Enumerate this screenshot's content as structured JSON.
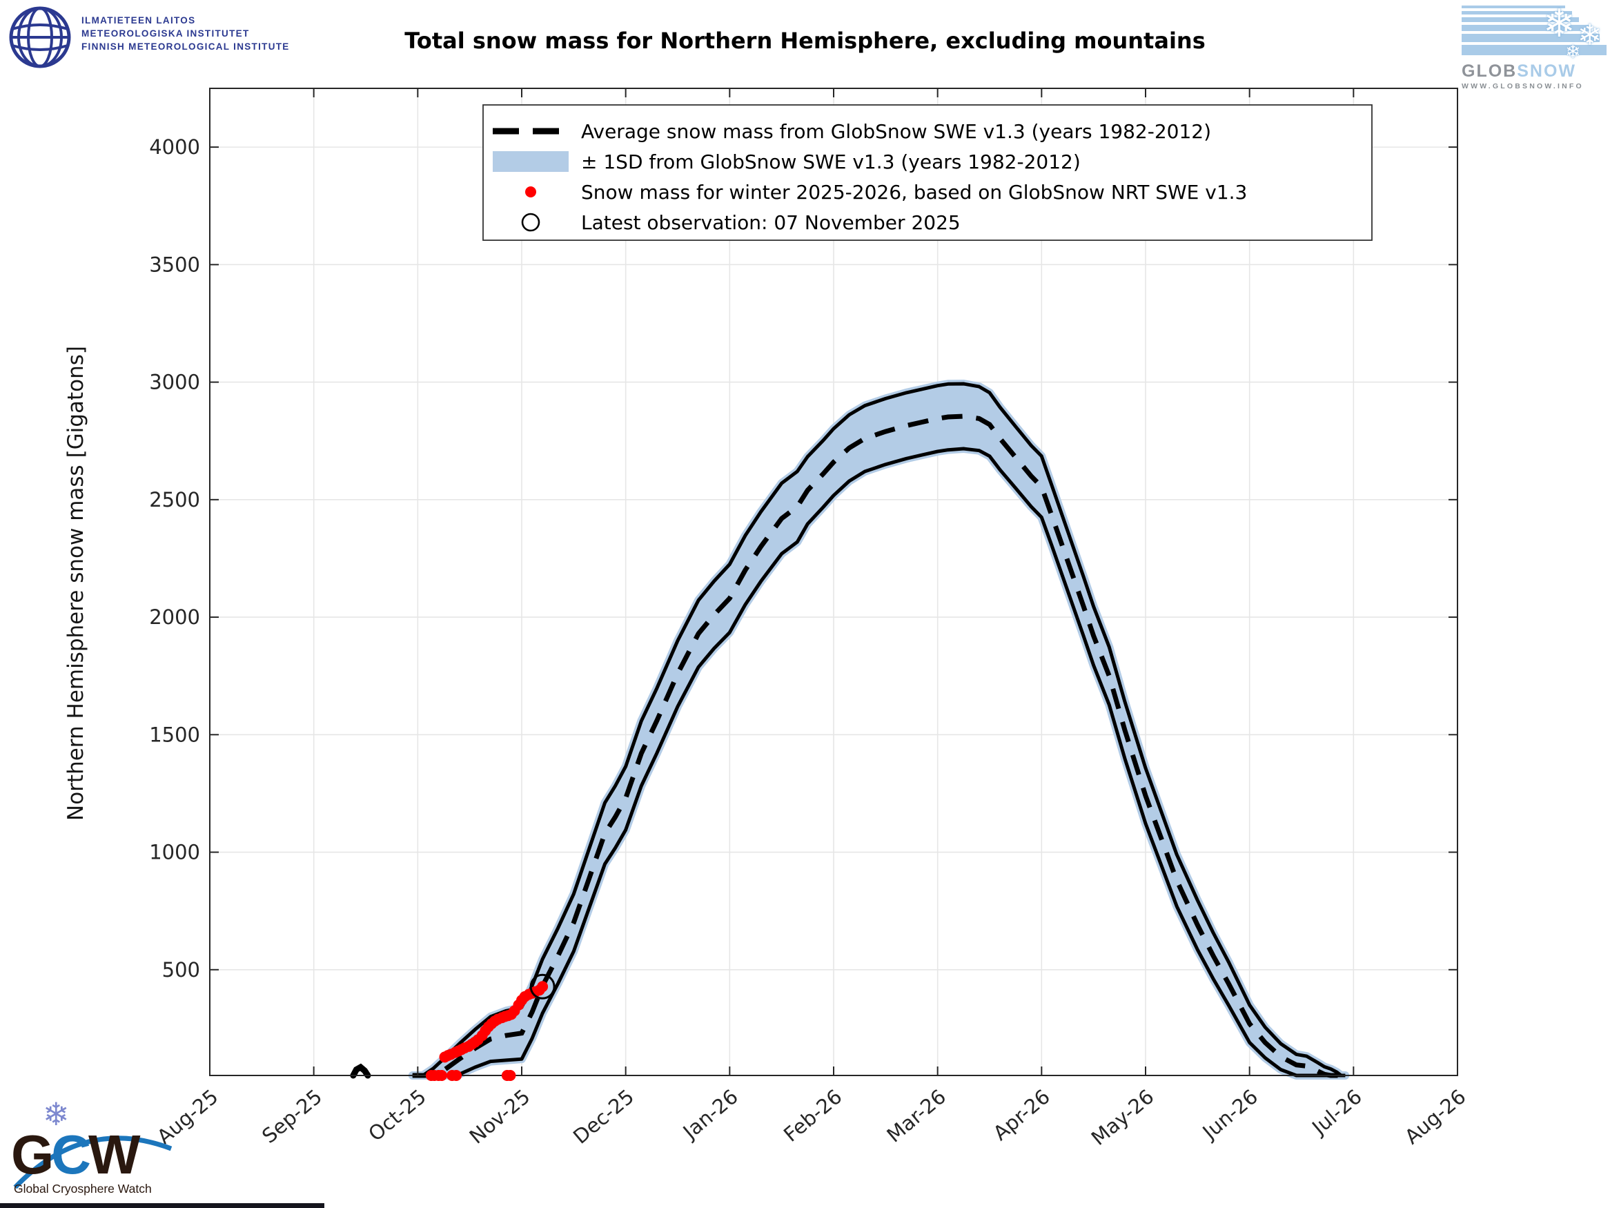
{
  "header": {
    "fmi_logo": {
      "lines": [
        "ILMATIETEEN LAITOS",
        "METEOROLOGISKA INSTITUTET",
        "FINNISH METEOROLOGICAL INSTITUTE"
      ]
    },
    "globsnow_logo": {
      "brand_gray": "GLOB",
      "brand_blue": "SNOW",
      "url": "WWW.GLOBSNOW.INFO"
    }
  },
  "footer": {
    "gcw_logo": {
      "letters": [
        "G",
        "C",
        "W"
      ],
      "caption": "Global Cryosphere Watch"
    }
  },
  "colors": {
    "band": "#B3CCE6",
    "line": "#000000",
    "nrt_red": "#FF0000",
    "grid": "#E6E6E6",
    "axis": "#262626",
    "fmi_blue": "#2B3990",
    "globsnow_blue": "#A9CBE8",
    "globsnow_gray": "#8F9399",
    "gcw_dark": "#2A180F",
    "gcw_blue": "#1C76BC"
  },
  "chart_data": {
    "type": "line",
    "title": "Total snow mass for Northern Hemisphere, excluding mountains",
    "ylabel": "Northern Hemisphere snow mass [Gigatons]",
    "xlabel": "",
    "ylim": [
      50,
      4250
    ],
    "yticks": [
      500,
      1000,
      1500,
      2000,
      2500,
      3000,
      3500,
      4000
    ],
    "xtick_labels": [
      "Aug-25",
      "Sep-25",
      "Oct-25",
      "Nov-25",
      "Dec-25",
      "Jan-26",
      "Feb-26",
      "Mar-26",
      "Apr-26",
      "May-26",
      "Jun-26",
      "Jul-26",
      "Aug-26"
    ],
    "x_unit_note": "x values below are months after 1 Aug 2025 (0 = Aug-25 tick, 12 = Aug-26 tick)",
    "grid": true,
    "legend_position": "top-left-inside",
    "legend": [
      {
        "symbol": "dashed-line",
        "label": "Average snow mass from GlobSnow SWE v1.3 (years 1982-2012)"
      },
      {
        "symbol": "band-swatch",
        "label": "± 1SD from GlobSnow SWE v1.3 (years 1982-2012)"
      },
      {
        "symbol": "red-dot",
        "label": "Snow mass for winter 2025-2026, based on GlobSnow NRT SWE v1.3"
      },
      {
        "symbol": "open-circle",
        "label": "Latest observation: 07 November 2025"
      }
    ],
    "series": [
      {
        "name": "climatology_mean_with_sd",
        "style": "black dashed mean, blue ±1SD band with solid black edges",
        "points_m_mean_sd": [
          [
            1.95,
            5,
            5
          ],
          [
            2.05,
            20,
            18
          ],
          [
            2.15,
            45,
            35
          ],
          [
            2.26,
            75,
            50
          ],
          [
            2.4,
            120,
            65
          ],
          [
            2.55,
            165,
            80
          ],
          [
            2.7,
            205,
            95
          ],
          [
            2.85,
            220,
            105
          ],
          [
            3.0,
            230,
            110
          ],
          [
            3.1,
            320,
            112
          ],
          [
            3.2,
            430,
            115
          ],
          [
            3.35,
            560,
            118
          ],
          [
            3.5,
            700,
            122
          ],
          [
            3.65,
            890,
            126
          ],
          [
            3.8,
            1080,
            130
          ],
          [
            3.9,
            1150,
            132
          ],
          [
            4.0,
            1230,
            135
          ],
          [
            4.15,
            1420,
            138
          ],
          [
            4.3,
            1560,
            138
          ],
          [
            4.5,
            1760,
            140
          ],
          [
            4.7,
            1930,
            142
          ],
          [
            4.85,
            2010,
            143
          ],
          [
            5.0,
            2080,
            145
          ],
          [
            5.15,
            2200,
            147
          ],
          [
            5.3,
            2300,
            148
          ],
          [
            5.5,
            2420,
            150
          ],
          [
            5.65,
            2470,
            150
          ],
          [
            5.75,
            2540,
            143
          ],
          [
            5.9,
            2610,
            142
          ],
          [
            6.0,
            2660,
            142
          ],
          [
            6.15,
            2720,
            141
          ],
          [
            6.3,
            2760,
            140
          ],
          [
            6.5,
            2790,
            140
          ],
          [
            6.7,
            2815,
            140
          ],
          [
            6.85,
            2830,
            140
          ],
          [
            7.0,
            2845,
            140
          ],
          [
            7.1,
            2852,
            140
          ],
          [
            7.25,
            2855,
            138
          ],
          [
            7.4,
            2845,
            136
          ],
          [
            7.5,
            2820,
            135
          ],
          [
            7.6,
            2760,
            133
          ],
          [
            7.75,
            2680,
            131
          ],
          [
            7.9,
            2600,
            130
          ],
          [
            8.0,
            2555,
            130
          ],
          [
            8.1,
            2430,
            128
          ],
          [
            8.25,
            2240,
            127
          ],
          [
            8.4,
            2050,
            126
          ],
          [
            8.5,
            1920,
            125
          ],
          [
            8.65,
            1750,
            123
          ],
          [
            8.8,
            1520,
            121
          ],
          [
            9.0,
            1240,
            118
          ],
          [
            9.15,
            1060,
            114
          ],
          [
            9.3,
            880,
            110
          ],
          [
            9.5,
            690,
            105
          ],
          [
            9.65,
            560,
            98
          ],
          [
            9.8,
            440,
            92
          ],
          [
            10.0,
            270,
            80
          ],
          [
            10.15,
            190,
            65
          ],
          [
            10.3,
            130,
            55
          ],
          [
            10.45,
            95,
            45
          ],
          [
            10.55,
            90,
            42
          ],
          [
            10.65,
            70,
            36
          ],
          [
            10.72,
            55,
            32
          ],
          [
            10.78,
            48,
            30
          ],
          [
            10.84,
            38,
            26
          ],
          [
            10.88,
            20,
            14
          ],
          [
            10.92,
            6,
            5
          ]
        ]
      },
      {
        "name": "september_snow_blip",
        "style": "small black blob on baseline mid-September",
        "points_m_v": [
          [
            1.38,
            50
          ],
          [
            1.41,
            75
          ],
          [
            1.45,
            85
          ],
          [
            1.49,
            70
          ],
          [
            1.52,
            50
          ]
        ]
      },
      {
        "name": "nrt_winter_2025_2026",
        "style": "red filled dots",
        "points_m_v": [
          [
            2.13,
            12
          ],
          [
            2.16,
            18
          ],
          [
            2.2,
            15
          ],
          [
            2.23,
            22
          ],
          [
            2.26,
            128
          ],
          [
            2.29,
            135
          ],
          [
            2.32,
            140
          ],
          [
            2.33,
            14
          ],
          [
            2.36,
            148
          ],
          [
            2.37,
            8
          ],
          [
            2.39,
            154
          ],
          [
            2.42,
            160
          ],
          [
            2.45,
            167
          ],
          [
            2.49,
            174
          ],
          [
            2.52,
            183
          ],
          [
            2.55,
            192
          ],
          [
            2.58,
            202
          ],
          [
            2.62,
            220
          ],
          [
            2.65,
            240
          ],
          [
            2.68,
            257
          ],
          [
            2.71,
            270
          ],
          [
            2.74,
            281
          ],
          [
            2.77,
            289
          ],
          [
            2.81,
            296
          ],
          [
            2.84,
            301
          ],
          [
            2.86,
            18
          ],
          [
            2.87,
            305
          ],
          [
            2.89,
            12
          ],
          [
            2.9,
            310
          ],
          [
            2.93,
            325
          ],
          [
            2.97,
            350
          ],
          [
            3.0,
            370
          ],
          [
            3.03,
            385
          ],
          [
            3.07,
            395
          ],
          [
            3.1,
            400
          ],
          [
            3.13,
            406
          ],
          [
            3.17,
            413
          ],
          [
            3.2,
            428
          ]
        ]
      },
      {
        "name": "latest_observation",
        "style": "black open circle",
        "point_m_v": [
          3.2,
          428
        ],
        "date": "07 November 2025"
      }
    ]
  }
}
